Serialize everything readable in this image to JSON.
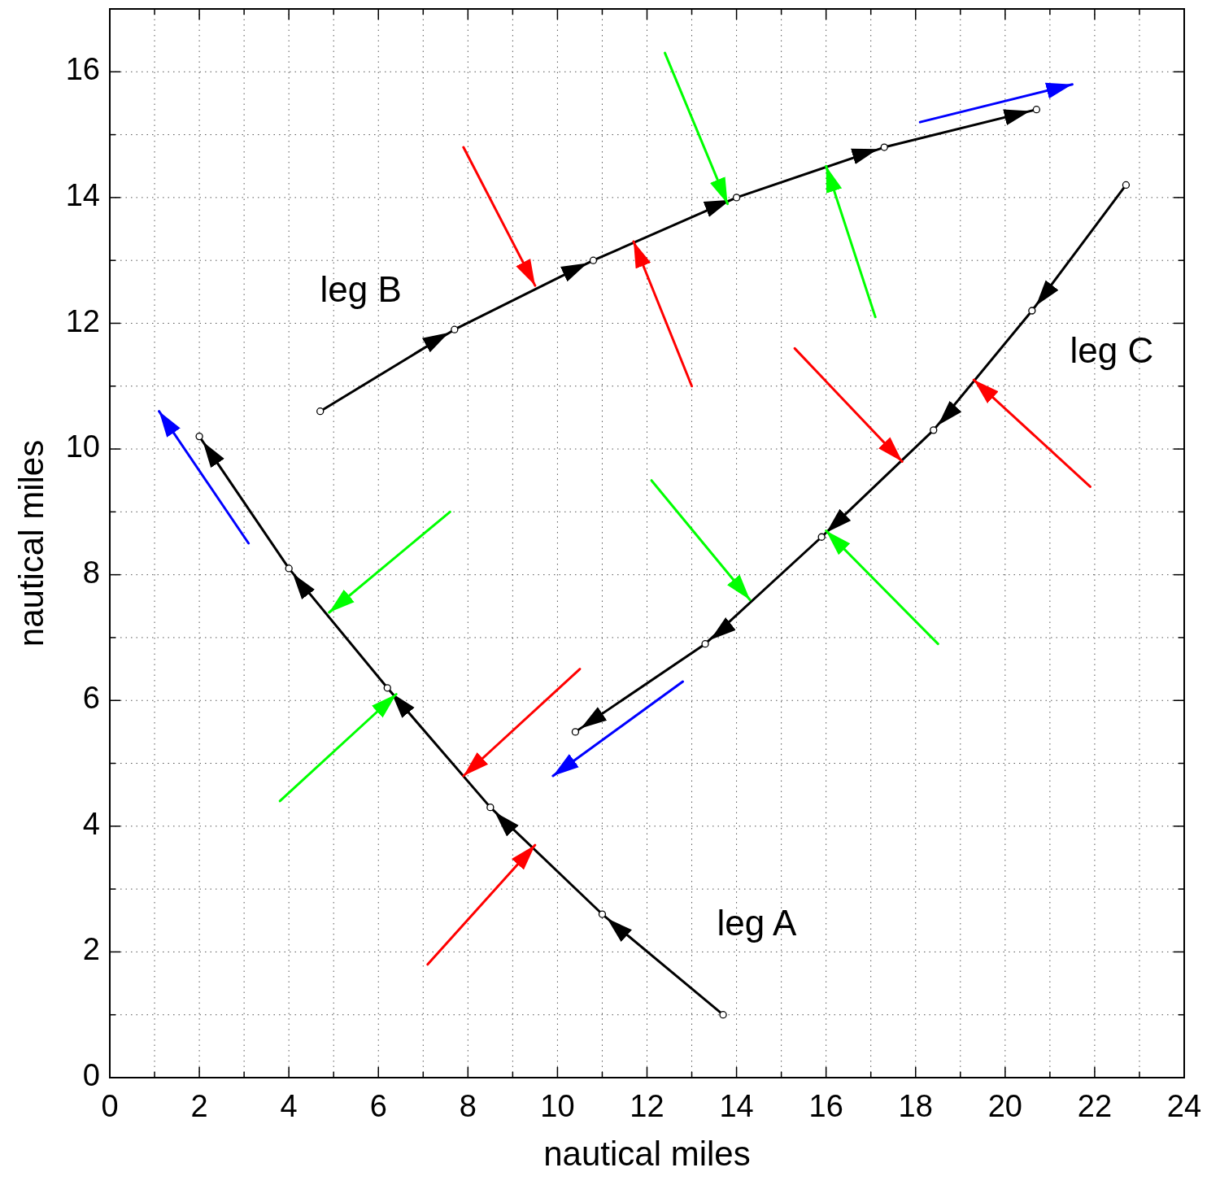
{
  "chart_data": {
    "type": "line",
    "xlabel": "nautical miles",
    "ylabel": "nautical miles",
    "xlim": [
      0,
      24
    ],
    "ylim": [
      0,
      17
    ],
    "xticks": [
      0,
      {
        "value": 1,
        "label": null
      },
      2,
      {
        "value": 3,
        "label": null
      },
      4,
      {
        "value": 5,
        "label": null
      },
      6,
      {
        "value": 7,
        "label": null
      },
      8,
      {
        "value": 9,
        "label": null
      },
      10,
      {
        "value": 11,
        "label": null
      },
      12,
      {
        "value": 13,
        "label": null
      },
      14,
      {
        "value": 15,
        "label": null
      },
      16,
      {
        "value": 17,
        "label": null
      },
      18,
      {
        "value": 19,
        "label": null
      },
      20,
      {
        "value": 21,
        "label": null
      },
      22,
      {
        "value": 23,
        "label": null
      },
      24
    ],
    "yticks": [
      0,
      {
        "value": 1,
        "label": null
      },
      2,
      {
        "value": 3,
        "label": null
      },
      4,
      {
        "value": 5,
        "label": null
      },
      6,
      {
        "value": 7,
        "label": null
      },
      8,
      {
        "value": 9,
        "label": null
      },
      10,
      {
        "value": 11,
        "label": null
      },
      12,
      {
        "value": 13,
        "label": null
      },
      14,
      {
        "value": 15,
        "label": null
      },
      16,
      {
        "value": 17,
        "label": null
      }
    ],
    "grid": true,
    "line_style": "solid",
    "series": [
      {
        "name": "leg A",
        "color": "#000000",
        "marker": "circle",
        "x": [
          13.7,
          11.0,
          8.5,
          6.2,
          4.0,
          2.0
        ],
        "values": [
          1.0,
          2.6,
          4.3,
          6.2,
          8.1,
          10.2
        ]
      },
      {
        "name": "leg B",
        "color": "#000000",
        "marker": "circle",
        "x": [
          4.7,
          7.7,
          10.8,
          14.0,
          17.3,
          20.7
        ],
        "values": [
          10.6,
          11.9,
          13.0,
          14.0,
          14.8,
          15.4
        ]
      },
      {
        "name": "leg C",
        "color": "#000000",
        "marker": "circle",
        "x": [
          22.7,
          20.6,
          18.4,
          15.9,
          13.3,
          10.4
        ],
        "values": [
          14.2,
          12.2,
          10.3,
          8.6,
          6.9,
          5.5
        ]
      },
      {
        "color": "#ff0000",
        "marker": "none",
        "x": [
          7.9,
          9.5
        ],
        "values": [
          14.8,
          12.6
        ]
      },
      {
        "color": "#ff0000",
        "marker": "none",
        "x": [
          13.0,
          11.7
        ],
        "values": [
          11.0,
          13.3
        ]
      },
      {
        "color": "#ff0000",
        "marker": "none",
        "x": [
          15.3,
          17.7
        ],
        "values": [
          11.6,
          9.8
        ]
      },
      {
        "color": "#ff0000",
        "marker": "none",
        "x": [
          21.9,
          19.3
        ],
        "values": [
          9.4,
          11.1
        ]
      },
      {
        "color": "#ff0000",
        "marker": "none",
        "x": [
          10.5,
          7.9
        ],
        "values": [
          6.5,
          4.8
        ]
      },
      {
        "color": "#ff0000",
        "marker": "none",
        "x": [
          7.1,
          9.5
        ],
        "values": [
          1.8,
          3.7
        ]
      },
      {
        "color": "#00ff00",
        "marker": "none",
        "x": [
          12.4,
          13.8
        ],
        "values": [
          16.3,
          13.9
        ]
      },
      {
        "color": "#00ff00",
        "marker": "none",
        "x": [
          17.1,
          16.0
        ],
        "values": [
          12.1,
          14.5
        ]
      },
      {
        "color": "#00ff00",
        "marker": "none",
        "x": [
          12.1,
          14.3
        ],
        "values": [
          9.5,
          7.6
        ]
      },
      {
        "color": "#00ff00",
        "marker": "none",
        "x": [
          18.5,
          16.0
        ],
        "values": [
          6.9,
          8.7
        ]
      },
      {
        "color": "#00ff00",
        "marker": "none",
        "x": [
          7.6,
          4.9
        ],
        "values": [
          9.0,
          7.4
        ]
      },
      {
        "color": "#00ff00",
        "marker": "none",
        "x": [
          3.8,
          6.4
        ],
        "values": [
          4.4,
          6.1
        ]
      },
      {
        "color": "#0000ff",
        "marker": "none",
        "x": [
          18.1,
          21.5
        ],
        "values": [
          15.2,
          15.8
        ]
      },
      {
        "color": "#0000ff",
        "marker": "none",
        "x": [
          12.8,
          9.9
        ],
        "values": [
          6.3,
          4.8
        ]
      },
      {
        "color": "#0000ff",
        "marker": "none",
        "x": [
          3.1,
          1.1
        ],
        "values": [
          8.5,
          10.6
        ]
      }
    ]
  }
}
